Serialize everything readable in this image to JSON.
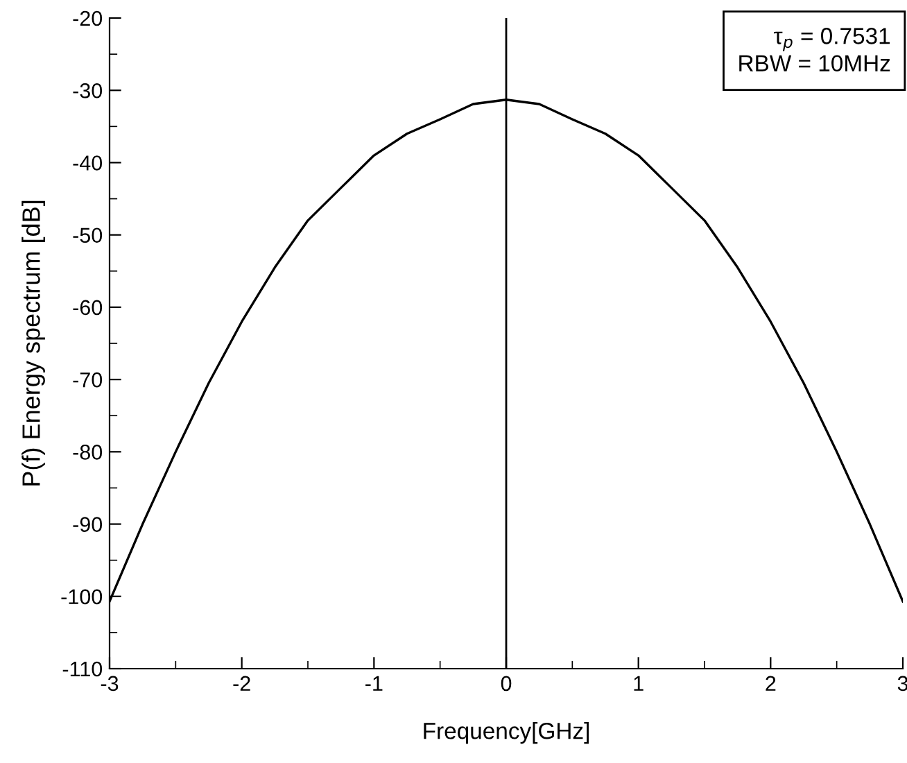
{
  "chart_data": {
    "type": "line",
    "xlabel": "Frequency[GHz]",
    "ylabel": "P(f) Energy spectrum [dB]",
    "x": [
      -3,
      -2.75,
      -2.5,
      -2.25,
      -2,
      -1.75,
      -1.5,
      -1.25,
      -1,
      -0.75,
      -0.5,
      -0.25,
      0,
      0.25,
      0.5,
      0.75,
      1,
      1.25,
      1.5,
      1.75,
      2,
      2.25,
      2.5,
      2.75,
      3
    ],
    "series": [
      {
        "color": "#000000",
        "values": [
          -100.7,
          -90,
          -80,
          -70.5,
          -62,
          -54.5,
          -48,
          -43.5,
          -39,
          -36,
          -34,
          -31.9,
          -31.3,
          -31.9,
          -34,
          -36,
          -39,
          -43.5,
          -48,
          -54.5,
          -62,
          -70.5,
          -80,
          -90,
          -100.7
        ]
      }
    ],
    "xlim": [
      -3,
      3
    ],
    "xticks": [
      -3,
      -2,
      -1,
      0,
      1,
      2,
      3
    ],
    "ylim": [
      -110,
      -20
    ],
    "yticks": [
      -110,
      -100,
      -90,
      -80,
      -70,
      -60,
      -50,
      -40,
      -30,
      -20
    ],
    "ref_lines": [
      {
        "axis": "x",
        "value": 0,
        "color": "#000000"
      }
    ],
    "annotations": [
      "τ$_{p}$ = 0.7531\nRBW = 10MHz"
    ],
    "grid": false,
    "legend": false,
    "marker": "none",
    "line_style": "solid"
  }
}
